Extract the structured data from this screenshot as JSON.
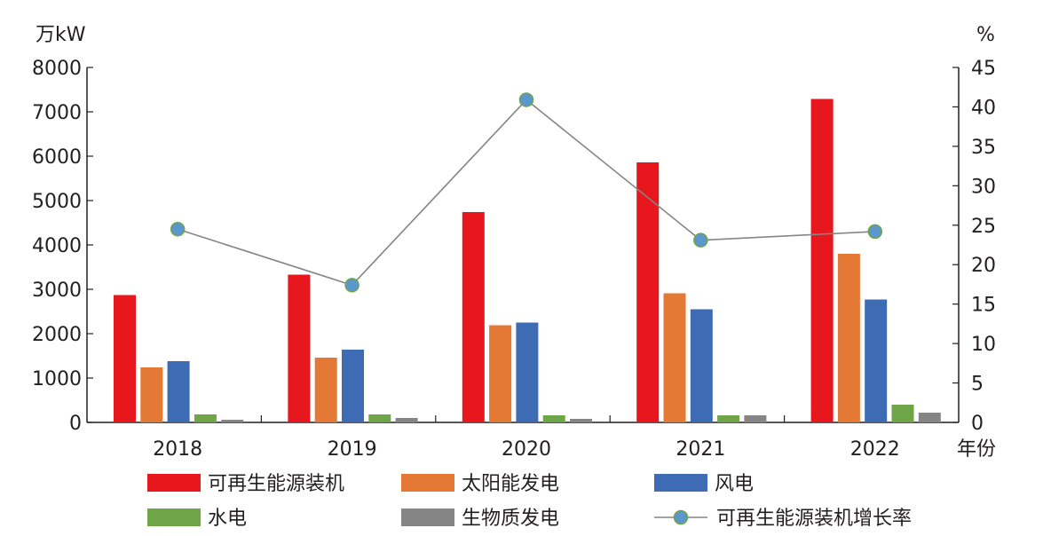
{
  "chart_data": {
    "type": "bar",
    "categories": [
      "2018",
      "2019",
      "2020",
      "2021",
      "2022"
    ],
    "xlabel": "年份",
    "ylabel": "万kW",
    "y2label": "%",
    "ylim": [
      0,
      8000
    ],
    "y2lim": [
      0,
      45
    ],
    "yticks": [
      0,
      1000,
      2000,
      3000,
      4000,
      5000,
      6000,
      7000,
      8000
    ],
    "y2ticks": [
      0,
      5,
      10,
      15,
      20,
      25,
      30,
      35,
      40,
      45
    ],
    "grid": false,
    "legend_placement": "bottom",
    "series": [
      {
        "name": "可再生能源装机",
        "type": "bar",
        "axis": "left",
        "color": "#e8161d",
        "values": [
          2870,
          3330,
          4740,
          5860,
          7290
        ]
      },
      {
        "name": "太阳能发电",
        "type": "bar",
        "axis": "left",
        "color": "#e37934",
        "values": [
          1240,
          1460,
          2190,
          2910,
          3800
        ]
      },
      {
        "name": "风电",
        "type": "bar",
        "axis": "left",
        "color": "#3d6cb4",
        "values": [
          1380,
          1640,
          2250,
          2550,
          2770
        ]
      },
      {
        "name": "水电",
        "type": "bar",
        "axis": "left",
        "color": "#6ea547",
        "values": [
          180,
          180,
          160,
          160,
          400
        ]
      },
      {
        "name": "生物质发电",
        "type": "bar",
        "axis": "left",
        "color": "#858585",
        "values": [
          60,
          100,
          80,
          160,
          220
        ]
      },
      {
        "name": "可再生能源装机增长率",
        "type": "line",
        "axis": "right",
        "color": "#858585",
        "marker_color": "#5b97cc",
        "marker_edge": "#6ea547",
        "values": [
          24.5,
          17.4,
          40.9,
          23.1,
          24.2
        ]
      }
    ]
  }
}
